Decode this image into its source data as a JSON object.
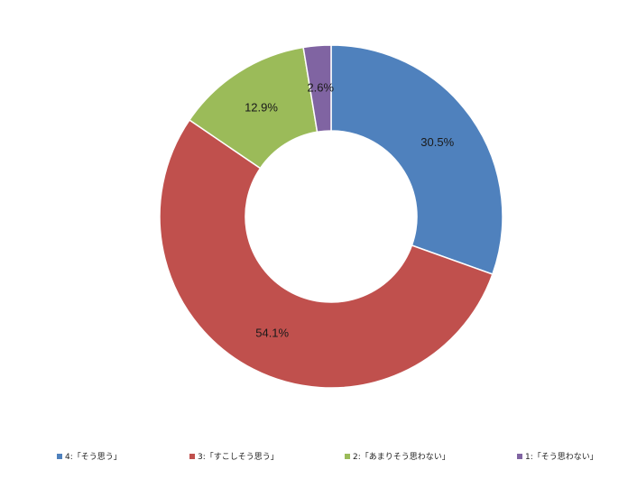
{
  "chart_data": {
    "type": "pie",
    "donut": true,
    "legend_position": "bottom",
    "categories": [
      "4:「そう思う」",
      "3:「すこしそう思う」",
      "2:「あまりそう思わない」",
      "1:「そう思わない」"
    ],
    "values": [
      30.5,
      54.1,
      12.9,
      2.6
    ],
    "data_labels": [
      "30.5%",
      "54.1%",
      "12.9%",
      "2.6%"
    ],
    "colors": [
      "#4f81bd",
      "#c0504d",
      "#9bbb59",
      "#8064a2"
    ]
  }
}
